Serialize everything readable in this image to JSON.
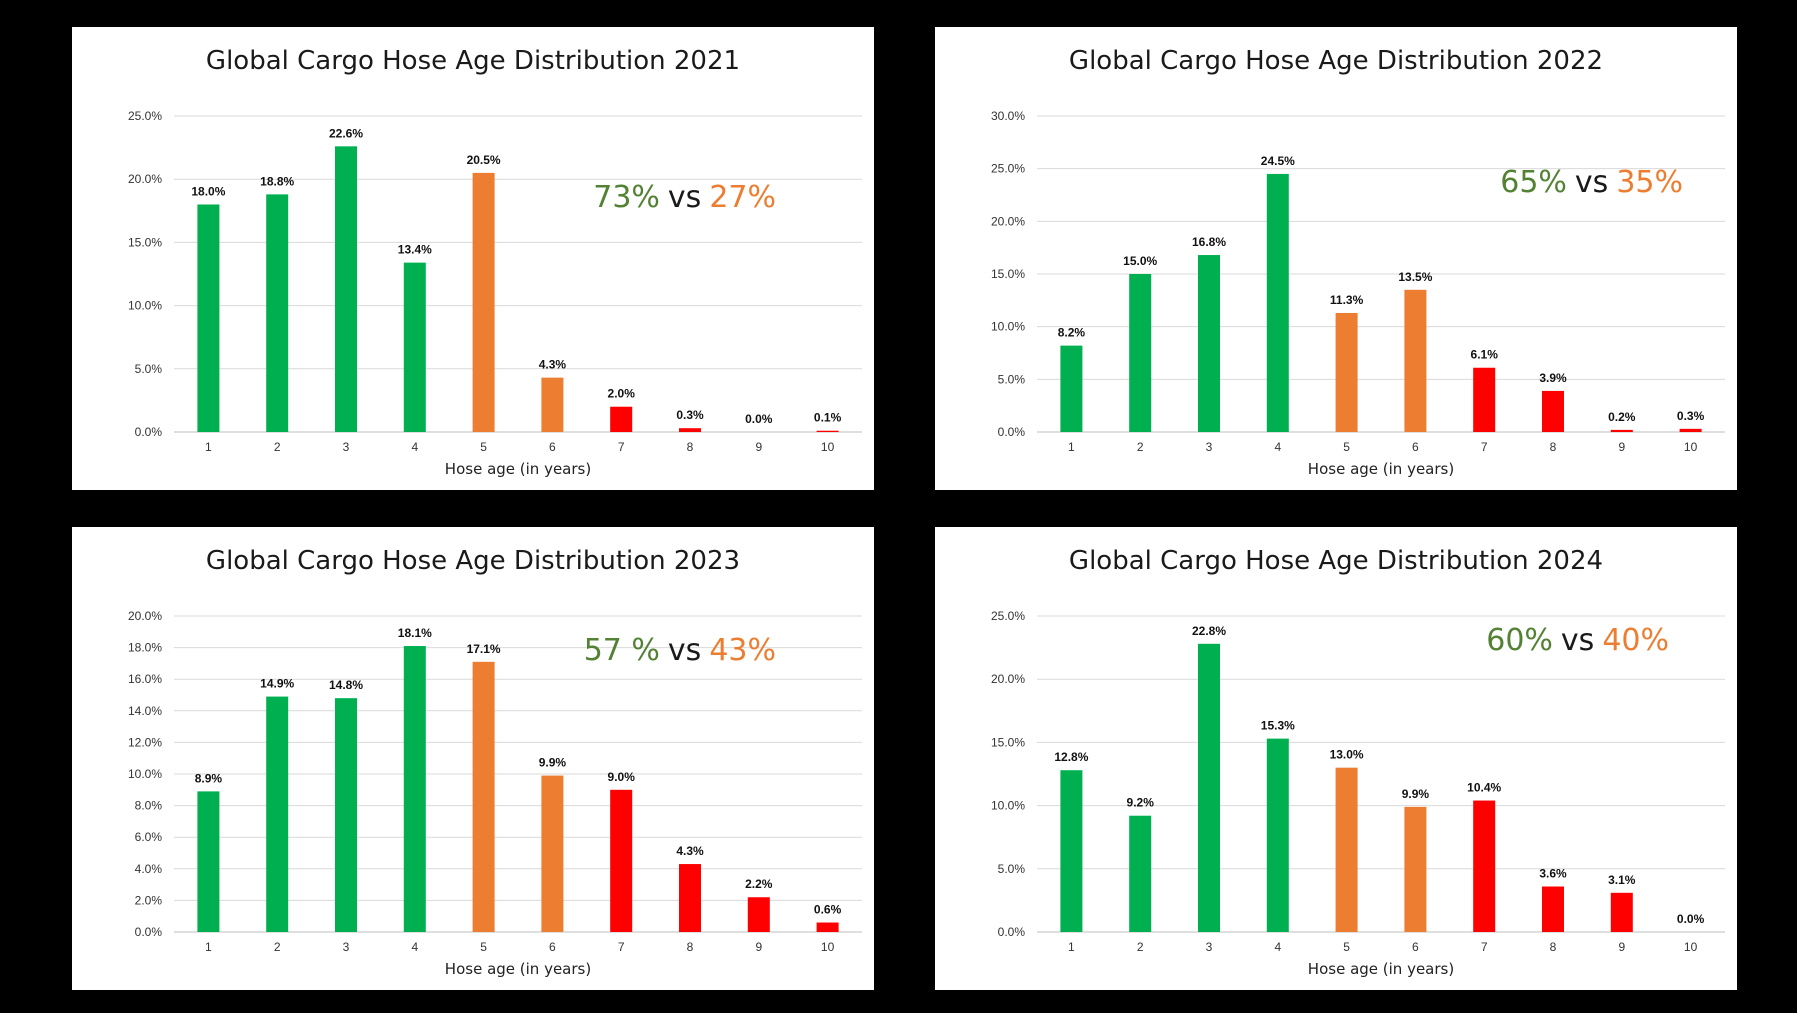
{
  "colors": {
    "green": "#00b050",
    "orange": "#ed7d31",
    "red": "#ff0000",
    "share_green": "#548235",
    "share_orange": "#ed7d31",
    "share_vs": "#1a1a1a"
  },
  "chart_data": [
    {
      "type": "bar",
      "title": "Global Cargo Hose Age Distribution 2021",
      "xlabel": "Hose age (in years)",
      "ylabel": "",
      "categories": [
        "1",
        "2",
        "3",
        "4",
        "5",
        "6",
        "7",
        "8",
        "9",
        "10"
      ],
      "values": [
        18.0,
        18.8,
        22.6,
        13.4,
        20.5,
        4.3,
        2.0,
        0.3,
        0.0,
        0.1
      ],
      "value_labels": [
        "18.0%",
        "18.8%",
        "22.6%",
        "13.4%",
        "20.5%",
        "4.3%",
        "2.0%",
        "0.3%",
        "0.0%",
        "0.1%"
      ],
      "bar_colors": [
        "green",
        "green",
        "green",
        "green",
        "orange",
        "orange",
        "red",
        "red",
        "red",
        "red"
      ],
      "ylim": [
        0,
        25
      ],
      "yticks": [
        "0.0%",
        "5.0%",
        "10.0%",
        "15.0%",
        "20.0%",
        "25.0%"
      ],
      "grid": true,
      "legend": "none",
      "annotation": {
        "green": "73%",
        "vs": "vs",
        "orange": "27%"
      }
    },
    {
      "type": "bar",
      "title": "Global Cargo Hose Age Distribution 2022",
      "xlabel": "Hose age (in years)",
      "ylabel": "",
      "categories": [
        "1",
        "2",
        "3",
        "4",
        "5",
        "6",
        "7",
        "8",
        "9",
        "10"
      ],
      "values": [
        8.2,
        15.0,
        16.8,
        24.5,
        11.3,
        13.5,
        6.1,
        3.9,
        0.2,
        0.3
      ],
      "value_labels": [
        "8.2%",
        "15.0%",
        "16.8%",
        "24.5%",
        "11.3%",
        "13.5%",
        "6.1%",
        "3.9%",
        "0.2%",
        "0.3%"
      ],
      "bar_colors": [
        "green",
        "green",
        "green",
        "green",
        "orange",
        "orange",
        "red",
        "red",
        "red",
        "red"
      ],
      "ylim": [
        0,
        30
      ],
      "yticks": [
        "0.0%",
        "5.0%",
        "10.0%",
        "15.0%",
        "20.0%",
        "25.0%",
        "30.0%"
      ],
      "grid": true,
      "legend": "none",
      "annotation": {
        "green": "65%",
        "vs": "vs",
        "orange": "35%"
      }
    },
    {
      "type": "bar",
      "title": "Global Cargo Hose Age Distribution 2023",
      "xlabel": "Hose age (in years)",
      "ylabel": "",
      "categories": [
        "1",
        "2",
        "3",
        "4",
        "5",
        "6",
        "7",
        "8",
        "9",
        "10"
      ],
      "values": [
        8.9,
        14.9,
        14.8,
        18.1,
        17.1,
        9.9,
        9.0,
        4.3,
        2.2,
        0.6
      ],
      "value_labels": [
        "8.9%",
        "14.9%",
        "14.8%",
        "18.1%",
        "17.1%",
        "9.9%",
        "9.0%",
        "4.3%",
        "2.2%",
        "0.6%"
      ],
      "bar_colors": [
        "green",
        "green",
        "green",
        "green",
        "orange",
        "orange",
        "red",
        "red",
        "red",
        "red"
      ],
      "ylim": [
        0,
        20
      ],
      "yticks": [
        "0.0%",
        "2.0%",
        "4.0%",
        "6.0%",
        "8.0%",
        "10.0%",
        "12.0%",
        "14.0%",
        "16.0%",
        "18.0%",
        "20.0%"
      ],
      "grid": true,
      "legend": "none",
      "annotation": {
        "green": "57 %",
        "vs": "vs",
        "orange": "43%"
      }
    },
    {
      "type": "bar",
      "title": "Global Cargo Hose Age Distribution 2024",
      "xlabel": "Hose age (in years)",
      "ylabel": "",
      "categories": [
        "1",
        "2",
        "3",
        "4",
        "5",
        "6",
        "7",
        "8",
        "9",
        "10"
      ],
      "values": [
        12.8,
        9.2,
        22.8,
        15.3,
        13.0,
        9.9,
        10.4,
        3.6,
        3.1,
        0.0
      ],
      "value_labels": [
        "12.8%",
        "9.2%",
        "22.8%",
        "15.3%",
        "13.0%",
        "9.9%",
        "10.4%",
        "3.6%",
        "3.1%",
        "0.0%"
      ],
      "bar_colors": [
        "green",
        "green",
        "green",
        "green",
        "orange",
        "orange",
        "red",
        "red",
        "red",
        "red"
      ],
      "ylim": [
        0,
        25
      ],
      "yticks": [
        "0.0%",
        "5.0%",
        "10.0%",
        "15.0%",
        "20.0%",
        "25.0%"
      ],
      "grid": true,
      "legend": "none",
      "annotation": {
        "green": "60%",
        "vs": "vs",
        "orange": "40%"
      }
    }
  ]
}
